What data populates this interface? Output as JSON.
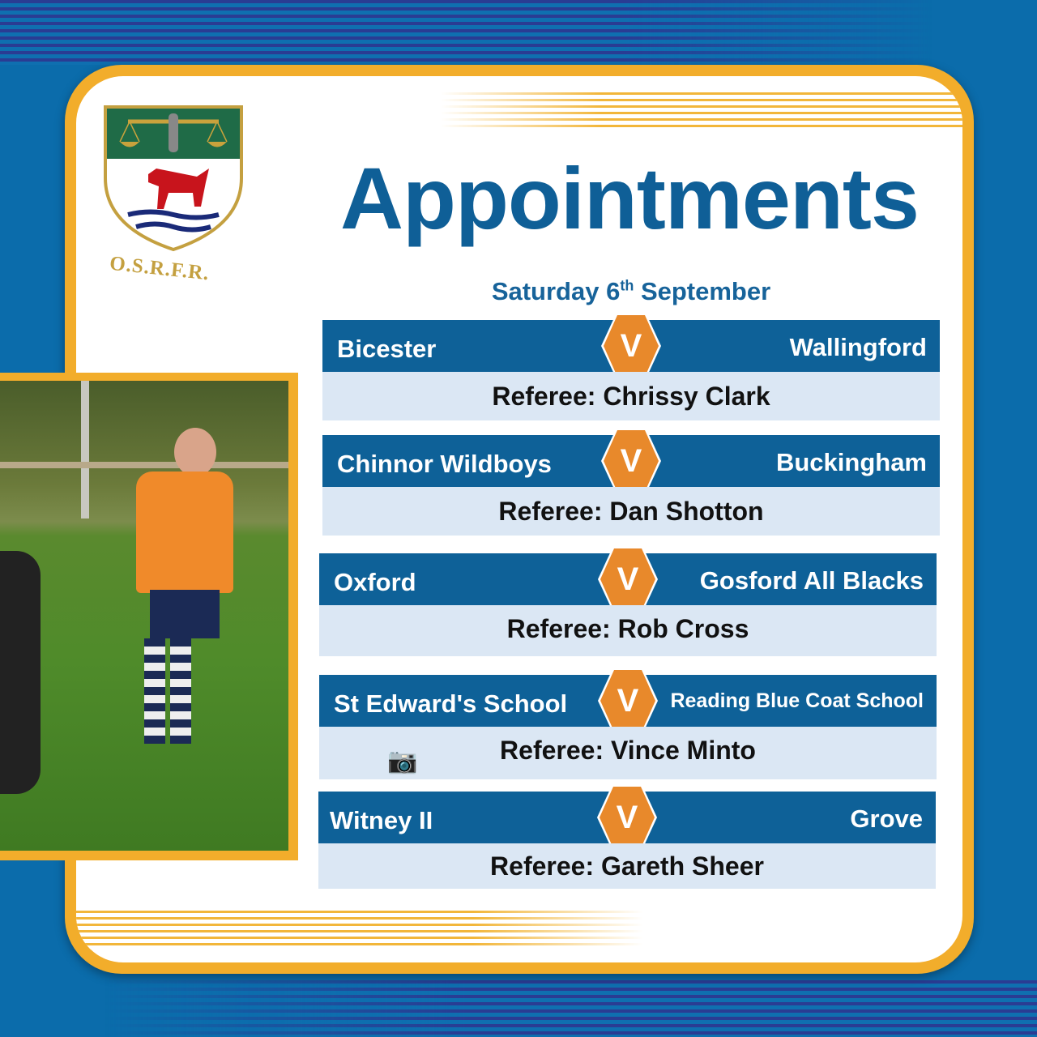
{
  "crest": {
    "text": "O.S.R.F.R."
  },
  "title": "Appointments",
  "date": {
    "weekday": "Saturday 6",
    "suffix": "th",
    "month": "September"
  },
  "versus_label": "V",
  "colors": {
    "background": "#0b6cab",
    "card_border": "#f2ad2b",
    "header": "#0e6198",
    "hexagon": "#e8892b",
    "referee_row": "#dbe7f4"
  },
  "matches": [
    {
      "home": "Bicester",
      "away": "Wallingford",
      "referee": "Referee: Chrissy Clark"
    },
    {
      "home": "Chinnor Wildboys",
      "away": "Buckingham",
      "referee": "Referee: Dan Shotton"
    },
    {
      "home": "Oxford",
      "away": "Gosford All Blacks",
      "referee": "Referee: Rob Cross"
    },
    {
      "home": "St Edward's School",
      "away": "Reading Blue Coat School",
      "referee": "Referee: Vince Minto",
      "icon": "camera-icon"
    },
    {
      "home": "Witney II",
      "away": "Grove",
      "referee": "Referee: Gareth Sheer"
    }
  ]
}
